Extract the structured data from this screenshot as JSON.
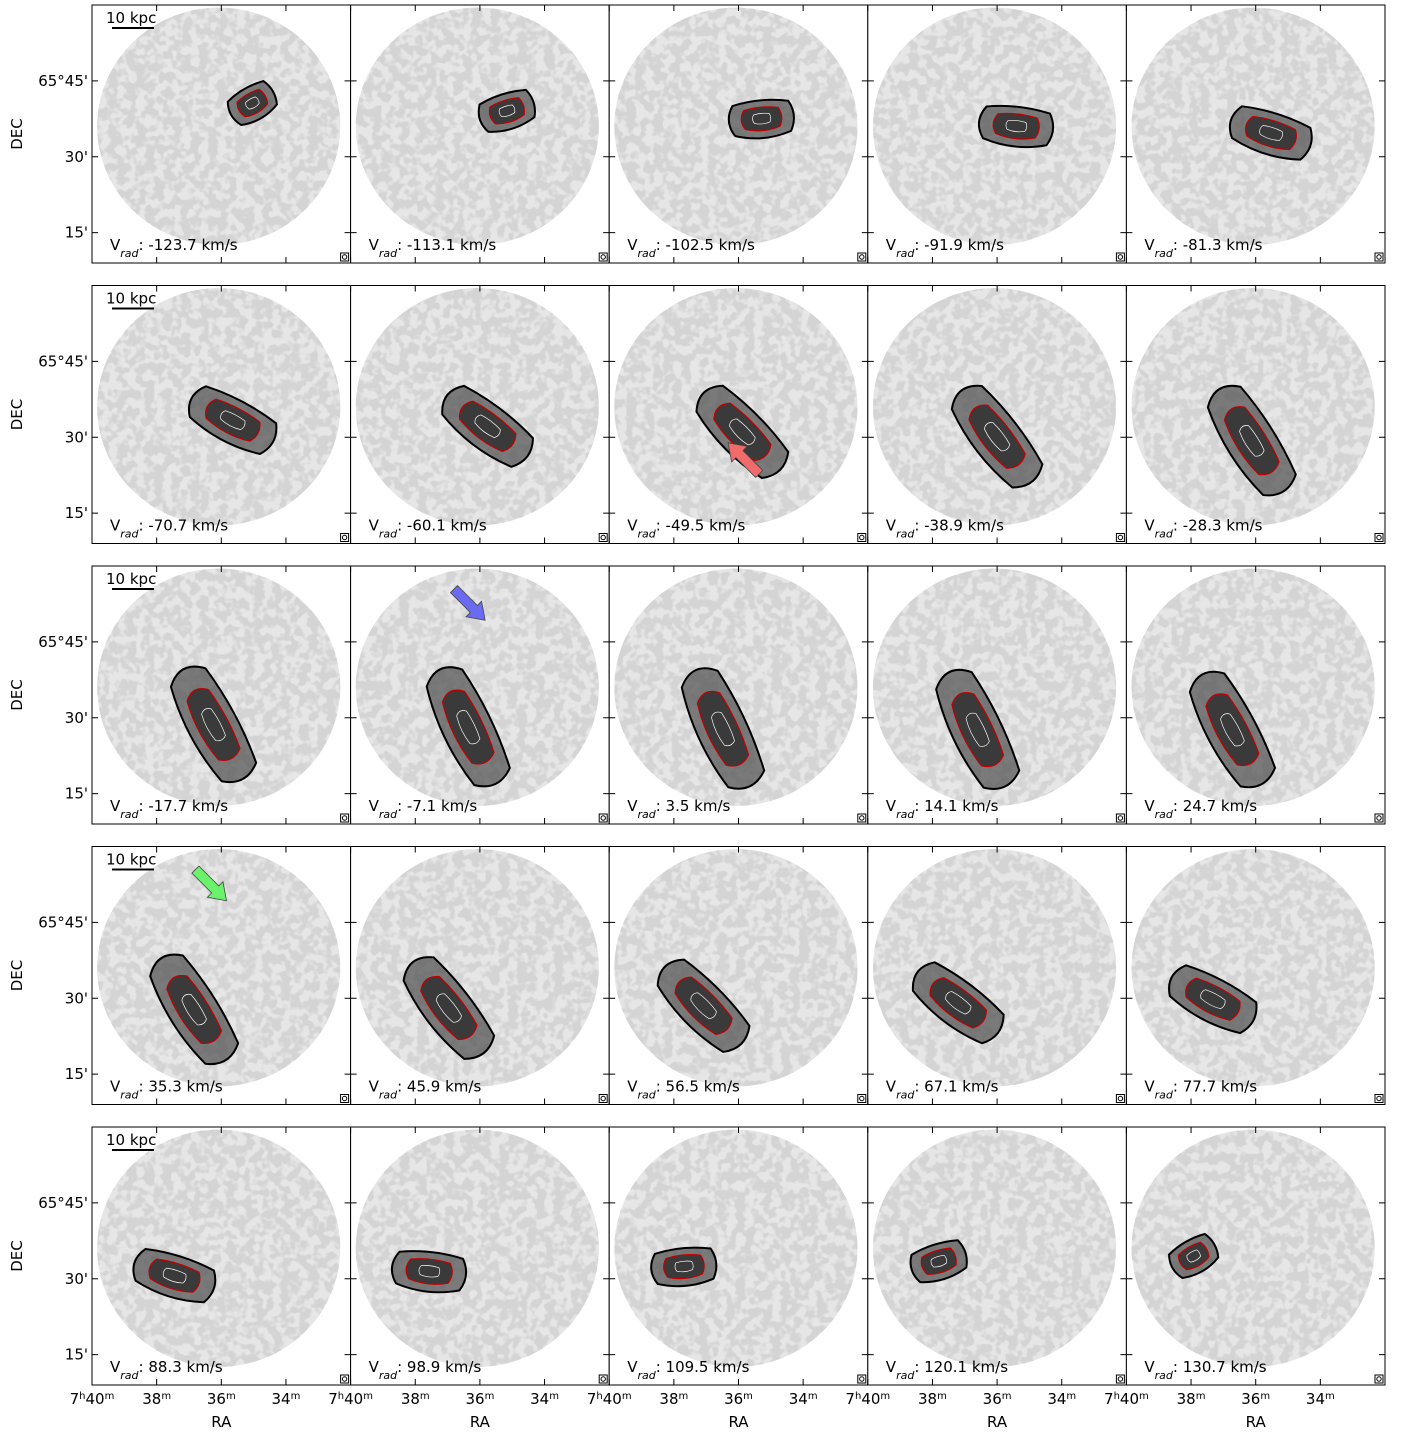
{
  "chart_data": {
    "type": "channel-map",
    "layout": {
      "rows": 5,
      "cols": 5
    },
    "y_axis": {
      "label": "DEC",
      "tick_labels": [
        "65°45'",
        "30'",
        "15'"
      ],
      "tick_values_arcmin": [
        45,
        30,
        15
      ],
      "range_arcmin": [
        9,
        60
      ]
    },
    "x_axis": {
      "label": "RA",
      "tick_labels": [
        "7h40m",
        "38m",
        "36m",
        "34m"
      ],
      "tick_values_min": [
        40,
        38,
        36,
        34
      ],
      "range_min": [
        40,
        32
      ]
    },
    "scale_bar_label": "10 kpc",
    "velocity_prefix": "V",
    "velocity_subscript": "rad",
    "velocity_unit": "km/s",
    "channels": [
      -123.7,
      -113.1,
      -102.5,
      -91.9,
      -81.3,
      -70.7,
      -60.1,
      -49.5,
      -38.9,
      -28.3,
      -17.7,
      -7.1,
      3.5,
      14.1,
      24.7,
      35.3,
      45.9,
      56.5,
      67.1,
      77.7,
      88.3,
      98.9,
      109.5,
      120.1,
      130.7
    ],
    "colors": {
      "background_noise": "#d2d2d2",
      "emission": "#555555",
      "contour_outer": "#000000",
      "contour_mid": "#c00000",
      "contour_inner": "#ffffff",
      "arrow_red": "#f26b6b",
      "arrow_blue": "#6b6bf2",
      "arrow_green": "#6bf26b"
    },
    "annotations": [
      {
        "panel": 7,
        "arrow": "red",
        "direction": "up-left"
      },
      {
        "panel": 11,
        "arrow": "blue",
        "direction": "down-right"
      },
      {
        "panel": 15,
        "arrow": "green",
        "direction": "down-right"
      }
    ]
  }
}
